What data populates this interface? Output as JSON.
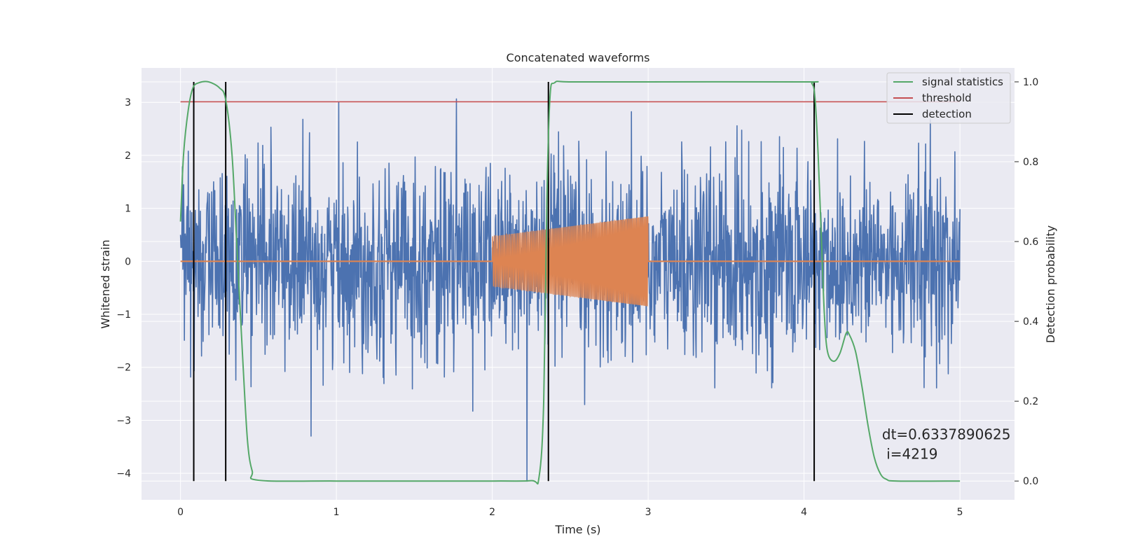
{
  "chart_data": {
    "type": "line",
    "title": "Concatenated waveforms",
    "xlabel": "Time (s)",
    "ylabel": "Whitened strain",
    "ylabel_right": "Detection probability",
    "xlim": [
      -0.25,
      5.35
    ],
    "ylim": [
      -4.5,
      3.65
    ],
    "ylim_right": [
      -0.047,
      1.035
    ],
    "x_ticks": [
      0,
      1,
      2,
      3,
      4,
      5
    ],
    "y_ticks": [
      -4,
      -3,
      -2,
      -1,
      0,
      1,
      2,
      3
    ],
    "y_ticks_right": [
      0.0,
      0.2,
      0.4,
      0.6,
      0.8,
      1.0
    ],
    "x_tick_labels": [
      "0",
      "1",
      "2",
      "3",
      "4",
      "5"
    ],
    "y_tick_labels": [
      "−4",
      "−3",
      "−2",
      "−1",
      "0",
      "1",
      "2",
      "3"
    ],
    "y_tick_labels_right": [
      "0.0",
      "0.2",
      "0.4",
      "0.6",
      "0.8",
      "1.0"
    ],
    "grid": true,
    "legend_position": "top-right",
    "colors": {
      "background": "#eaeaf2",
      "grid": "#ffffff",
      "noise": "#4c72b0",
      "waveform": "#dd8452",
      "signal_statistics": "#55a868",
      "threshold": "#c44e52",
      "detection": "#000000"
    },
    "series": [
      {
        "name": "",
        "role": "noise",
        "axis": "left",
        "x_range": [
          0,
          5
        ],
        "sample_interval": 0.0025,
        "std": 0.9,
        "peak_max": 3.3,
        "peak_min": -4.15
      },
      {
        "name": "",
        "role": "waveform",
        "axis": "left",
        "x_range": [
          2.0,
          3.0
        ],
        "amplitude_start": 0.47,
        "amplitude_end": 0.85,
        "cycles": 90,
        "flat_value": 0
      },
      {
        "name": "signal statistics",
        "role": "signal_statistics",
        "axis": "right",
        "x": [
          0.0,
          0.02,
          0.05,
          0.08,
          0.12,
          0.18,
          0.25,
          0.29,
          0.33,
          0.36,
          0.4,
          0.43,
          0.46,
          0.5,
          1.0,
          2.0,
          2.25,
          2.3,
          2.33,
          2.35,
          2.37,
          2.4,
          2.5,
          3.0,
          4.0,
          4.05,
          4.07,
          4.09,
          4.11,
          4.13,
          4.15,
          4.19,
          4.23,
          4.27,
          4.29,
          4.33,
          4.37,
          4.41,
          4.45,
          4.49,
          4.53,
          4.6,
          5.0
        ],
        "y": [
          0.65,
          0.82,
          0.93,
          0.985,
          0.998,
          1.0,
          0.985,
          0.955,
          0.82,
          0.6,
          0.3,
          0.1,
          0.025,
          0.002,
          0.0,
          0.0,
          0.001,
          0.01,
          0.2,
          0.7,
          0.96,
          0.998,
          1.0,
          1.0,
          1.0,
          0.996,
          0.96,
          0.82,
          0.62,
          0.42,
          0.325,
          0.3,
          0.32,
          0.37,
          0.367,
          0.325,
          0.24,
          0.14,
          0.06,
          0.018,
          0.004,
          0.0,
          0.0
        ]
      },
      {
        "name": "threshold",
        "role": "threshold",
        "axis": "right",
        "x": [
          0,
          5
        ],
        "y": [
          0.95,
          0.95
        ]
      },
      {
        "name": "detection",
        "role": "detection",
        "axis": "right",
        "x": [
          0.085,
          0.29,
          2.36,
          4.065
        ],
        "y_range": [
          0,
          1
        ]
      }
    ],
    "annotation": {
      "line1": "dt=0.6337890625",
      "line2": " i=4219",
      "x": 4.5,
      "y": 0.105
    }
  }
}
